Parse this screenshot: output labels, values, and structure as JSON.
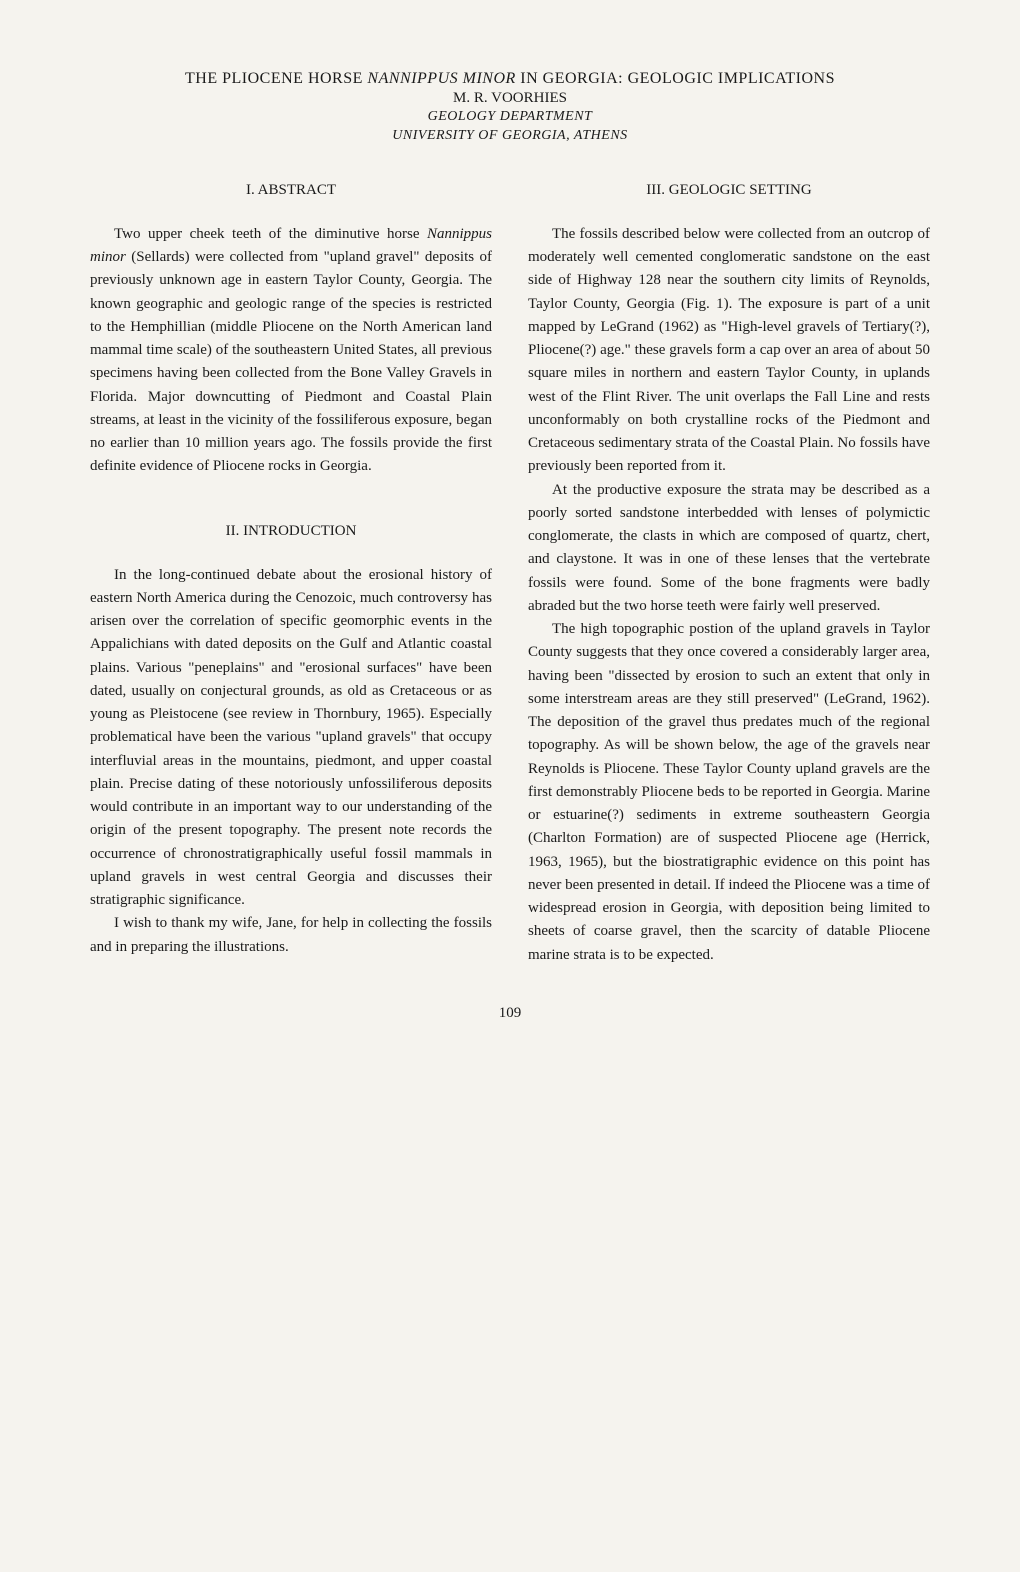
{
  "header": {
    "title_pre": "THE PLIOCENE HORSE ",
    "title_italic": "NANNIPPUS MINOR",
    "title_post": " IN GEORGIA: GEOLOGIC IMPLICATIONS",
    "author": "M. R. VOORHIES",
    "affiliation_line1": "GEOLOGY DEPARTMENT",
    "affiliation_line2": "UNIVERSITY OF GEORGIA, ATHENS"
  },
  "left_column": {
    "section1_heading": "I. ABSTRACT",
    "section1_p1_pre": "Two upper cheek teeth of the diminutive horse ",
    "section1_p1_italic": "Nannippus minor",
    "section1_p1_post": " (Sellards) were collected from \"upland gravel\" deposits of previously unknown age in eastern Taylor County, Georgia. The known geographic and geologic range of the species is restricted to the Hemphillian (middle Pliocene on the North American land mammal time scale) of the southeastern United States, all previous specimens having been collected from the Bone Valley Gravels in Florida. Major downcutting of Piedmont and Coastal Plain streams, at least in the vicinity of the fossiliferous exposure, began no earlier than 10 million years ago. The fossils provide the first definite evidence of Pliocene rocks in Georgia.",
    "section2_heading": "II. INTRODUCTION",
    "section2_p1": "In the long-continued debate about the erosional history of eastern North America during the Cenozoic, much controversy has arisen over the correlation of specific geomorphic events in the Appalichians with dated deposits on the Gulf and Atlantic coastal plains. Various \"peneplains\" and \"erosional surfaces\" have been dated, usually on conjectural grounds, as old as Cretaceous or as young as Pleistocene (see review in Thornbury, 1965). Especially problematical have been the various \"upland gravels\" that occupy interfluvial areas in the mountains, piedmont, and upper coastal plain. Precise dating of these notoriously unfossiliferous deposits would contribute in an important way to our understanding of the origin of the present topography. The present note records the occurrence of chronostratigraphically useful fossil mammals in upland gravels in west central Georgia and discusses their stratigraphic significance.",
    "section2_p2": "I wish to thank my wife, Jane, for help in collecting the fossils and in preparing the illustrations."
  },
  "right_column": {
    "section3_heading": "III. GEOLOGIC SETTING",
    "section3_p1": "The fossils described below were collected from an outcrop of moderately well cemented conglomeratic sandstone on the east side of Highway 128 near the southern city limits of Reynolds, Taylor County, Georgia (Fig. 1). The exposure is part of a unit mapped by LeGrand (1962) as \"High-level gravels of Tertiary(?), Pliocene(?) age.\" these gravels form a cap over an area of about 50 square miles in northern and eastern Taylor County, in uplands west of the Flint River. The unit overlaps the Fall Line and rests unconformably on both crystalline rocks of the Piedmont and Cretaceous sedimentary strata of the Coastal Plain. No fossils have previously been reported from it.",
    "section3_p2": "At the productive exposure the strata may be described as a poorly sorted sandstone interbedded with lenses of polymictic conglomerate, the clasts in which are composed of quartz, chert, and claystone. It was in one of these lenses that the vertebrate fossils were found. Some of the bone fragments were badly abraded but the two horse teeth were fairly well preserved.",
    "section3_p3": "The high topographic postion of the upland gravels in Taylor County suggests that they once covered a considerably larger area, having been \"dissected by erosion to such an extent that only in some interstream areas are they still preserved\" (LeGrand, 1962). The deposition of the gravel thus predates much of the regional topography. As will be shown below, the age of the gravels near Reynolds is Pliocene. These Taylor County upland gravels are the first demonstrably Pliocene beds to be reported in Georgia. Marine or estuarine(?) sediments in extreme southeastern Georgia (Charlton Formation) are of suspected Pliocene age (Herrick, 1963, 1965), but the biostratigraphic evidence on this point has never been presented in detail. If indeed the Pliocene was a time of widespread erosion in Georgia, with deposition being limited to sheets of coarse gravel, then the scarcity of datable Pliocene marine strata is to be expected."
  },
  "page_number": "109"
}
